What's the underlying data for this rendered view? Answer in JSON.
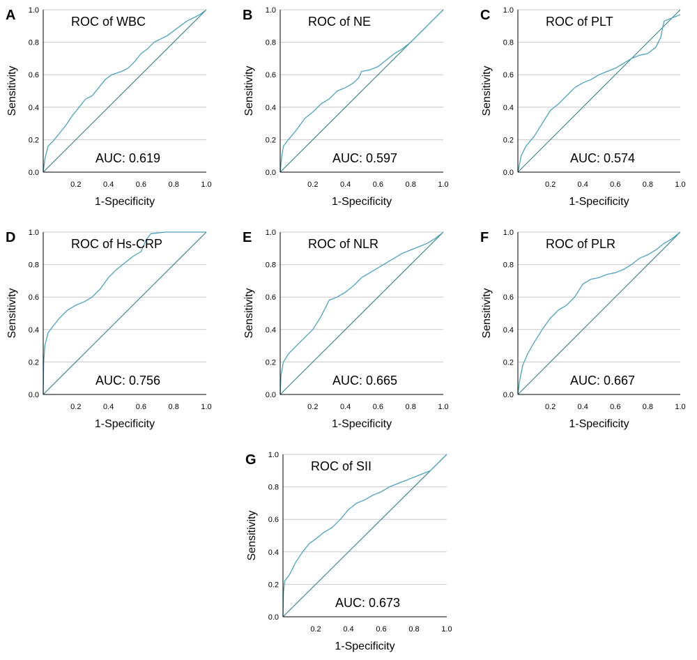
{
  "colors": {
    "curve": "#4aa3c0",
    "diagonal": "#2f7f86",
    "grid": "#c8c8c8",
    "axis": "#000000"
  },
  "chart_data": [
    {
      "type": "line",
      "panel": "A",
      "title": "ROC of WBC",
      "auc": "AUC: 0.619",
      "xlabel": "1-Specificity",
      "ylabel": "Sensitivity",
      "xlim": [
        0,
        1
      ],
      "ylim": [
        0,
        1
      ],
      "xticks": [
        "0.2",
        "0.4",
        "0.6",
        "0.8",
        "1.0"
      ],
      "yticks": [
        "0.0",
        "0.2",
        "0.4",
        "0.6",
        "0.8",
        "1.0"
      ],
      "grid": "horizontal",
      "x": [
        0,
        0.01,
        0.03,
        0.06,
        0.1,
        0.14,
        0.18,
        0.22,
        0.26,
        0.3,
        0.34,
        0.38,
        0.42,
        0.48,
        0.52,
        0.56,
        0.6,
        0.64,
        0.68,
        0.72,
        0.76,
        0.8,
        0.84,
        0.88,
        0.92,
        0.96,
        1.0
      ],
      "y": [
        0,
        0.08,
        0.16,
        0.19,
        0.24,
        0.29,
        0.35,
        0.4,
        0.45,
        0.47,
        0.52,
        0.57,
        0.6,
        0.62,
        0.64,
        0.68,
        0.73,
        0.76,
        0.8,
        0.82,
        0.84,
        0.87,
        0.9,
        0.93,
        0.95,
        0.97,
        1.0
      ]
    },
    {
      "type": "line",
      "panel": "B",
      "title": "ROC of NE",
      "auc": "AUC: 0.597",
      "xlabel": "1-Specificity",
      "ylabel": "Sensitivity",
      "xlim": [
        0,
        1
      ],
      "ylim": [
        0,
        1
      ],
      "xticks": [
        "0.2",
        "0.4",
        "0.6",
        "0.8",
        "1.0"
      ],
      "yticks": [
        "0.0",
        "0.2",
        "0.4",
        "0.6",
        "0.8",
        "1.0"
      ],
      "grid": "horizontal",
      "x": [
        0,
        0.01,
        0.02,
        0.05,
        0.1,
        0.15,
        0.2,
        0.25,
        0.3,
        0.35,
        0.4,
        0.45,
        0.48,
        0.5,
        0.55,
        0.6,
        0.65,
        0.7,
        0.75,
        0.8,
        0.85,
        0.9,
        0.95,
        1.0
      ],
      "y": [
        0,
        0.1,
        0.16,
        0.2,
        0.26,
        0.33,
        0.37,
        0.42,
        0.45,
        0.5,
        0.52,
        0.55,
        0.58,
        0.62,
        0.63,
        0.65,
        0.69,
        0.73,
        0.76,
        0.8,
        0.85,
        0.9,
        0.95,
        1.0
      ]
    },
    {
      "type": "line",
      "panel": "C",
      "title": "ROC of PLT",
      "auc": "AUC: 0.574",
      "xlabel": "1-Specificity",
      "ylabel": "Sensitivity",
      "xlim": [
        0,
        1
      ],
      "ylim": [
        0,
        1
      ],
      "xticks": [
        "0.2",
        "0.4",
        "0.6",
        "0.8",
        "1.0"
      ],
      "yticks": [
        "0.0",
        "0.2",
        "0.4",
        "0.6",
        "0.8",
        "1.0"
      ],
      "grid": "horizontal",
      "x": [
        0,
        0.02,
        0.05,
        0.1,
        0.15,
        0.2,
        0.25,
        0.3,
        0.35,
        0.4,
        0.45,
        0.5,
        0.55,
        0.6,
        0.65,
        0.7,
        0.75,
        0.8,
        0.85,
        0.88,
        0.9,
        0.95,
        1.0
      ],
      "y": [
        0,
        0.1,
        0.16,
        0.22,
        0.3,
        0.38,
        0.42,
        0.47,
        0.52,
        0.55,
        0.57,
        0.6,
        0.62,
        0.64,
        0.67,
        0.7,
        0.72,
        0.73,
        0.77,
        0.83,
        0.93,
        0.95,
        0.97
      ]
    },
    {
      "type": "line",
      "panel": "D",
      "title": "ROC of Hs-CRP",
      "auc": "AUC: 0.756",
      "xlabel": "1-Specificity",
      "ylabel": "Sensitivity",
      "xlim": [
        0,
        1
      ],
      "ylim": [
        0,
        1
      ],
      "xticks": [
        "0.2",
        "0.4",
        "0.6",
        "0.8",
        "1.0"
      ],
      "yticks": [
        "0.0",
        "0.2",
        "0.4",
        "0.6",
        "0.8",
        "1.0"
      ],
      "grid": "horizontal",
      "x": [
        0,
        0.003,
        0.01,
        0.03,
        0.06,
        0.1,
        0.15,
        0.2,
        0.25,
        0.3,
        0.35,
        0.4,
        0.45,
        0.5,
        0.55,
        0.6,
        0.63,
        0.66,
        0.75,
        0.85,
        1.0
      ],
      "y": [
        0,
        0.2,
        0.3,
        0.38,
        0.42,
        0.47,
        0.52,
        0.55,
        0.57,
        0.6,
        0.65,
        0.72,
        0.77,
        0.81,
        0.85,
        0.88,
        0.95,
        0.99,
        1.0,
        1.0,
        1.0
      ]
    },
    {
      "type": "line",
      "panel": "E",
      "title": "ROC of NLR",
      "auc": "AUC: 0.665",
      "xlabel": "1-Specificity",
      "ylabel": "Sensitivity",
      "xlim": [
        0,
        1
      ],
      "ylim": [
        0,
        1
      ],
      "xticks": [
        "0.2",
        "0.4",
        "0.6",
        "0.8",
        "1.0"
      ],
      "yticks": [
        "0.0",
        "0.2",
        "0.4",
        "0.6",
        "0.8",
        "1.0"
      ],
      "grid": "horizontal",
      "x": [
        0,
        0.005,
        0.02,
        0.05,
        0.1,
        0.15,
        0.2,
        0.25,
        0.3,
        0.35,
        0.4,
        0.45,
        0.5,
        0.55,
        0.6,
        0.65,
        0.7,
        0.75,
        0.8,
        0.85,
        0.9,
        0.95,
        1.0
      ],
      "y": [
        0,
        0.12,
        0.2,
        0.25,
        0.3,
        0.35,
        0.4,
        0.48,
        0.58,
        0.6,
        0.63,
        0.67,
        0.72,
        0.75,
        0.78,
        0.81,
        0.84,
        0.87,
        0.89,
        0.91,
        0.93,
        0.96,
        1.0
      ]
    },
    {
      "type": "line",
      "panel": "F",
      "title": "ROC of PLR",
      "auc": "AUC: 0.667",
      "xlabel": "1-Specificity",
      "ylabel": "Sensitivity",
      "xlim": [
        0,
        1
      ],
      "ylim": [
        0,
        1
      ],
      "xticks": [
        "0.2",
        "0.4",
        "0.6",
        "0.8",
        "1.0"
      ],
      "yticks": [
        "0.0",
        "0.2",
        "0.4",
        "0.6",
        "0.8",
        "1.0"
      ],
      "grid": "horizontal",
      "x": [
        0,
        0.01,
        0.03,
        0.06,
        0.1,
        0.15,
        0.2,
        0.25,
        0.3,
        0.35,
        0.4,
        0.45,
        0.5,
        0.55,
        0.6,
        0.65,
        0.7,
        0.75,
        0.8,
        0.85,
        0.9,
        0.95,
        1.0
      ],
      "y": [
        0,
        0.08,
        0.18,
        0.25,
        0.32,
        0.4,
        0.47,
        0.52,
        0.55,
        0.6,
        0.68,
        0.71,
        0.72,
        0.74,
        0.75,
        0.77,
        0.8,
        0.84,
        0.86,
        0.89,
        0.93,
        0.96,
        1.0
      ]
    },
    {
      "type": "line",
      "panel": "G",
      "title": "ROC of SII",
      "auc": "AUC: 0.673",
      "xlabel": "1-Specificity",
      "ylabel": "Sensitivity",
      "xlim": [
        0,
        1
      ],
      "ylim": [
        0,
        1
      ],
      "xticks": [
        "0.2",
        "0.4",
        "0.6",
        "0.8",
        "1.0"
      ],
      "yticks": [
        "0.0",
        "0.2",
        "0.4",
        "0.6",
        "0.8",
        "1.0"
      ],
      "grid": "horizontal",
      "x": [
        0,
        0.003,
        0.01,
        0.04,
        0.08,
        0.12,
        0.16,
        0.2,
        0.25,
        0.3,
        0.35,
        0.4,
        0.45,
        0.5,
        0.55,
        0.6,
        0.65,
        0.7,
        0.75,
        0.8,
        0.85,
        0.9,
        0.95,
        1.0
      ],
      "y": [
        0,
        0.15,
        0.22,
        0.26,
        0.34,
        0.4,
        0.45,
        0.48,
        0.52,
        0.55,
        0.6,
        0.66,
        0.7,
        0.72,
        0.75,
        0.77,
        0.8,
        0.82,
        0.84,
        0.86,
        0.88,
        0.9,
        0.95,
        1.0
      ]
    }
  ]
}
